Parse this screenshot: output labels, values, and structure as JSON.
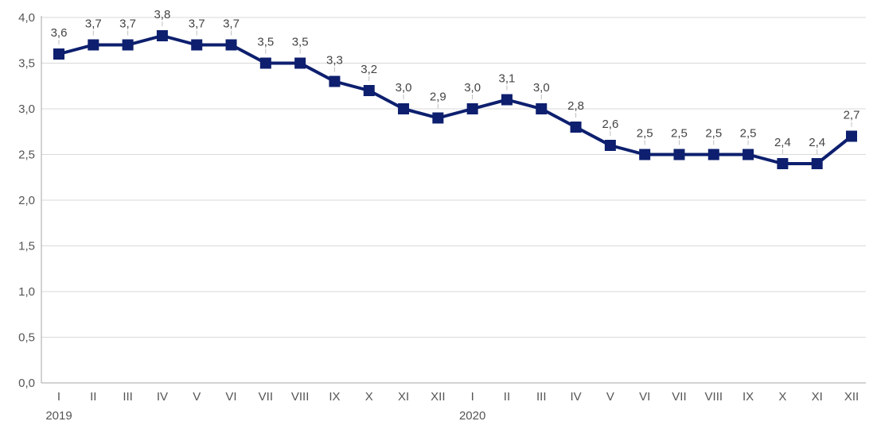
{
  "chart_data": {
    "type": "line",
    "title": "",
    "xlabel": "",
    "ylabel": "",
    "ylim": [
      0,
      4.0
    ],
    "yticks": [
      "0,0",
      "0,5",
      "1,0",
      "1,5",
      "2,0",
      "2,5",
      "3,0",
      "3,5",
      "4,0"
    ],
    "ytick_values": [
      0,
      0.5,
      1.0,
      1.5,
      2.0,
      2.5,
      3.0,
      3.5,
      4.0
    ],
    "grid": "horizontal",
    "legend": "none",
    "categories": [
      "I",
      "II",
      "III",
      "IV",
      "V",
      "VI",
      "VII",
      "VIII",
      "IX",
      "X",
      "XI",
      "XII",
      "I",
      "II",
      "III",
      "IV",
      "V",
      "VI",
      "VII",
      "VIII",
      "IX",
      "X",
      "XI",
      "XII"
    ],
    "year_labels": [
      {
        "label": "2019",
        "category_index": 0
      },
      {
        "label": "2020",
        "category_index": 12
      }
    ],
    "series": [
      {
        "color": "#0d1f6e",
        "values": [
          3.6,
          3.7,
          3.7,
          3.8,
          3.7,
          3.7,
          3.5,
          3.5,
          3.3,
          3.2,
          3.0,
          2.9,
          3.0,
          3.1,
          3.0,
          2.8,
          2.6,
          2.5,
          2.5,
          2.5,
          2.5,
          2.4,
          2.4,
          2.7
        ],
        "data_labels": [
          "3,6",
          "3,7",
          "3,7",
          "3,8",
          "3,7",
          "3,7",
          "3,5",
          "3,5",
          "3,3",
          "3,2",
          "3,0",
          "2,9",
          "3,0",
          "3,1",
          "3,0",
          "2,8",
          "2,6",
          "2,5",
          "2,5",
          "2,5",
          "2,5",
          "2,4",
          "2,4",
          "2,7"
        ]
      }
    ]
  }
}
